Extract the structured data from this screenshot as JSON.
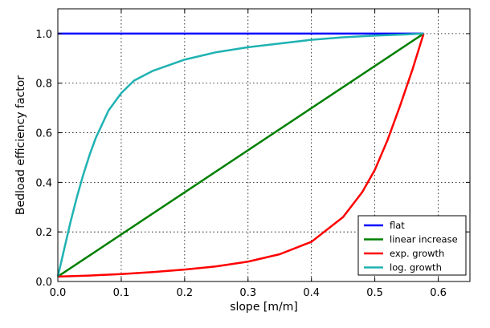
{
  "chart_data": {
    "type": "line",
    "title": "",
    "xlabel": "slope [m/m]",
    "ylabel": "Bedload efficiency factor",
    "xlim": [
      0.0,
      0.65
    ],
    "ylim": [
      0.0,
      1.1
    ],
    "xticks": [
      "0.0",
      "0.1",
      "0.2",
      "0.3",
      "0.4",
      "0.5",
      "0.6"
    ],
    "xtick_values": [
      0.0,
      0.1,
      0.2,
      0.3,
      0.4,
      0.5,
      0.6
    ],
    "yticks": [
      "0.0",
      "0.2",
      "0.4",
      "0.6",
      "0.8",
      "1.0"
    ],
    "ytick_values": [
      0.0,
      0.2,
      0.4,
      0.6,
      0.8,
      1.0
    ],
    "grid": true,
    "legend_position": "bottom-right",
    "series": [
      {
        "name": "flat",
        "color": "#0000ff",
        "x": [
          0.0,
          0.577
        ],
        "y": [
          1.0,
          1.0
        ]
      },
      {
        "name": "linear increase",
        "color": "#008000",
        "x": [
          0.0,
          0.577
        ],
        "y": [
          0.02,
          1.0
        ]
      },
      {
        "name": "exp. growth",
        "color": "#ff0000",
        "x": [
          0.0,
          0.05,
          0.1,
          0.15,
          0.2,
          0.25,
          0.3,
          0.35,
          0.4,
          0.45,
          0.48,
          0.5,
          0.52,
          0.54,
          0.56,
          0.577
        ],
        "y": [
          0.02,
          0.024,
          0.03,
          0.038,
          0.048,
          0.061,
          0.08,
          0.11,
          0.16,
          0.26,
          0.36,
          0.45,
          0.57,
          0.71,
          0.86,
          1.0
        ]
      },
      {
        "name": "log. growth",
        "color": "#20b2b2",
        "x": [
          0.0,
          0.01,
          0.02,
          0.03,
          0.04,
          0.05,
          0.06,
          0.08,
          0.1,
          0.12,
          0.15,
          0.2,
          0.25,
          0.3,
          0.35,
          0.4,
          0.45,
          0.5,
          0.55,
          0.577
        ],
        "y": [
          0.02,
          0.13,
          0.24,
          0.34,
          0.43,
          0.51,
          0.58,
          0.69,
          0.76,
          0.81,
          0.85,
          0.895,
          0.925,
          0.945,
          0.96,
          0.975,
          0.985,
          0.992,
          0.997,
          1.0
        ]
      }
    ]
  }
}
